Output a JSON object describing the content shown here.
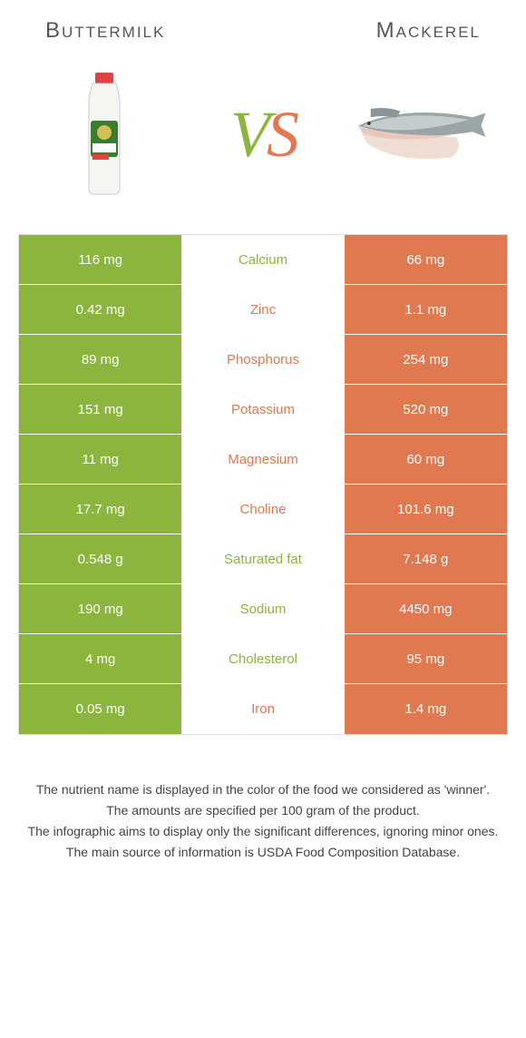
{
  "header": {
    "left": "Buttermilk",
    "right": "Mackerel"
  },
  "vs": {
    "v": "V",
    "s": "S"
  },
  "colors": {
    "green": "#8bb53d",
    "orange": "#e07850",
    "light_row": "#f7f7f7",
    "mid_text_green": "#8bb53d",
    "mid_text_orange": "#e07850"
  },
  "table": {
    "rows": [
      {
        "left": "116 mg",
        "mid": "Calcium",
        "right": "66 mg",
        "left_bg": "#8bb53d",
        "right_bg": "#e07850",
        "mid_color": "#8bb53d"
      },
      {
        "left": "0.42 mg",
        "mid": "Zinc",
        "right": "1.1 mg",
        "left_bg": "#8bb53d",
        "right_bg": "#e07850",
        "mid_color": "#e07850"
      },
      {
        "left": "89 mg",
        "mid": "Phosphorus",
        "right": "254 mg",
        "left_bg": "#8bb53d",
        "right_bg": "#e07850",
        "mid_color": "#e07850"
      },
      {
        "left": "151 mg",
        "mid": "Potassium",
        "right": "520 mg",
        "left_bg": "#8bb53d",
        "right_bg": "#e07850",
        "mid_color": "#e07850"
      },
      {
        "left": "11 mg",
        "mid": "Magnesium",
        "right": "60 mg",
        "left_bg": "#8bb53d",
        "right_bg": "#e07850",
        "mid_color": "#e07850"
      },
      {
        "left": "17.7 mg",
        "mid": "Choline",
        "right": "101.6 mg",
        "left_bg": "#8bb53d",
        "right_bg": "#e07850",
        "mid_color": "#e07850"
      },
      {
        "left": "0.548 g",
        "mid": "Saturated fat",
        "right": "7.148 g",
        "left_bg": "#8bb53d",
        "right_bg": "#e07850",
        "mid_color": "#8bb53d"
      },
      {
        "left": "190 mg",
        "mid": "Sodium",
        "right": "4450 mg",
        "left_bg": "#8bb53d",
        "right_bg": "#e07850",
        "mid_color": "#8bb53d"
      },
      {
        "left": "4 mg",
        "mid": "Cholesterol",
        "right": "95 mg",
        "left_bg": "#8bb53d",
        "right_bg": "#e07850",
        "mid_color": "#8bb53d"
      },
      {
        "left": "0.05 mg",
        "mid": "Iron",
        "right": "1.4 mg",
        "left_bg": "#8bb53d",
        "right_bg": "#e07850",
        "mid_color": "#e07850"
      }
    ]
  },
  "footer": {
    "line1": "The nutrient name is displayed in the color of the food we considered as 'winner'.",
    "line2": "The amounts are specified per 100 gram of the product.",
    "line3": "The infographic aims to display only the significant differences, ignoring minor ones.",
    "line4": "The main source of information is USDA Food Composition Database."
  }
}
